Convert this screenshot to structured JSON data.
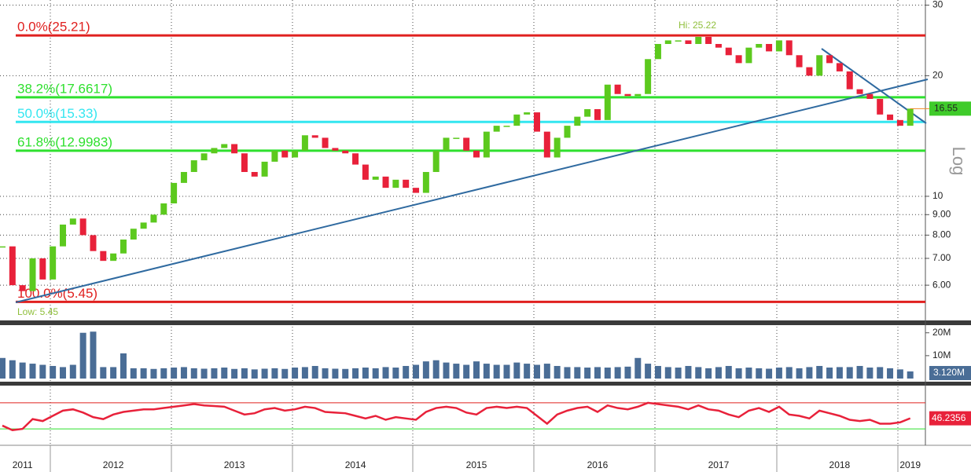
{
  "chart_data": [
    {
      "type": "candle",
      "categories": [
        null,
        null,
        "2011",
        null,
        null,
        null,
        null,
        null,
        null,
        null,
        null,
        "2012",
        null,
        null,
        null,
        null,
        null,
        null,
        null,
        null,
        null,
        null,
        null,
        "2013",
        null,
        null,
        null,
        null,
        null,
        null,
        null,
        null,
        null,
        null,
        null,
        "2014",
        null,
        null,
        null,
        null,
        null,
        null,
        null,
        null,
        null,
        null,
        null,
        "2015",
        null,
        null,
        null,
        null,
        null,
        null,
        null,
        null,
        null,
        null,
        null,
        "2016",
        null,
        null,
        null,
        null,
        null,
        null,
        null,
        null,
        null,
        null,
        null,
        "2017",
        null,
        null,
        null,
        null,
        null,
        null,
        null,
        null,
        null,
        null,
        null,
        "2018",
        null,
        null,
        null,
        null,
        null,
        null,
        "2019"
      ],
      "values": [
        7.5,
        6.0,
        5.8,
        7.0,
        6.2,
        7.5,
        8.5,
        8.8,
        8.0,
        7.3,
        6.9,
        7.2,
        7.8,
        8.3,
        8.6,
        9.0,
        9.6,
        10.8,
        11.5,
        12.3,
        12.8,
        13.2,
        13.5,
        12.8,
        11.5,
        11.2,
        12.2,
        13.0,
        12.5,
        13.0,
        14.2,
        14.0,
        13.2,
        13.0,
        12.8,
        12.0,
        11.0,
        11.2,
        10.5,
        11.0,
        10.5,
        10.2,
        11.5,
        13.0,
        14.0,
        14.0,
        13.0,
        12.5,
        14.5,
        15.0,
        15.0,
        16.0,
        16.2,
        14.5,
        12.5,
        14.0,
        15.0,
        15.8,
        16.5,
        15.5,
        19.0,
        18.0,
        17.8,
        18.0,
        22.0,
        24.0,
        24.5,
        24.5,
        24.0,
        25.0,
        24.0,
        23.5,
        22.5,
        21.5,
        23.5,
        24.0,
        23.0,
        24.5,
        22.5,
        21.0,
        20.0,
        22.5,
        21.5,
        20.5,
        18.5,
        18.0,
        17.5,
        16.0,
        15.5,
        15.0,
        16.55
      ],
      "up_color": "#5cc91e",
      "down_color": "#e8213a",
      "ylim": [
        4.9,
        30.9
      ],
      "log_scale": true,
      "scale_label": "Log",
      "yticks": [
        {
          "value": 6,
          "label": "6.00"
        },
        {
          "value": 7,
          "label": "7.00"
        },
        {
          "value": 8,
          "label": "8.00"
        },
        {
          "value": 9,
          "label": "9.00"
        },
        10,
        20,
        30
      ],
      "grid": true,
      "levels": [
        {
          "value": 25.21,
          "label": "0.0%(25.21)",
          "color": "#e0201f"
        },
        {
          "value": 17.6617,
          "label": "38.2%(17.6617)",
          "color": "#2ee02e"
        },
        {
          "value": 15.33,
          "label": "50.0%(15.33)",
          "color": "#33e6f0"
        },
        {
          "value": 12.9983,
          "label": "61.8%(12.9983)",
          "color": "#2ee02e"
        },
        {
          "value": 5.45,
          "label": "100.0%(5.45)",
          "color": "#e0201f"
        }
      ],
      "annotations": [
        "Hi: 25.22",
        "Low: 5.45"
      ]
    },
    {
      "type": "bar",
      "values": [
        9000000,
        8000000,
        7000000,
        6500000,
        6000000,
        5500000,
        5000000,
        6000000,
        20000000,
        20500000,
        5000000,
        5000000,
        11000000,
        4500000,
        4500000,
        4200000,
        4500000,
        4800000,
        5000000,
        4500000,
        4300000,
        4500000,
        4800000,
        4200000,
        4500000,
        4000000,
        4300000,
        4500000,
        4200000,
        4800000,
        5000000,
        5500000,
        4500000,
        4300000,
        4200000,
        4500000,
        4800000,
        4500000,
        5000000,
        4800000,
        5500000,
        6000000,
        7500000,
        8000000,
        7000000,
        6500000,
        6000000,
        7500000,
        6500000,
        6000000,
        6000000,
        7000000,
        6500000,
        6000000,
        6500000,
        5500000,
        5000000,
        5000000,
        4800000,
        5000000,
        4800000,
        5000000,
        5200000,
        9000000,
        6500000,
        5500000,
        5000000,
        4800000,
        5500000,
        5000000,
        4500000,
        5000000,
        5500000,
        4500000,
        4800000,
        4500000,
        4300000,
        4800000,
        5000000,
        4500000,
        5000000,
        5500000,
        4800000,
        5000000,
        5000000,
        5500000,
        4800000,
        5000000,
        4500000,
        4000000,
        3120000
      ],
      "last_value_label": "3.120M",
      "color": "#4a6d96",
      "ylim": [
        0,
        23000000
      ],
      "yticks": [
        {
          "value": 10000000,
          "label": "10M"
        },
        {
          "value": 20000000,
          "label": "20M"
        }
      ]
    },
    {
      "type": "line",
      "values": [
        35,
        28,
        30,
        45,
        42,
        50,
        58,
        60,
        55,
        48,
        45,
        52,
        56,
        58,
        60,
        60,
        62,
        64,
        66,
        68,
        66,
        65,
        64,
        58,
        52,
        54,
        60,
        62,
        58,
        60,
        64,
        62,
        56,
        55,
        54,
        50,
        46,
        50,
        44,
        48,
        46,
        44,
        56,
        62,
        64,
        62,
        55,
        52,
        62,
        64,
        62,
        64,
        62,
        50,
        38,
        52,
        58,
        62,
        64,
        56,
        66,
        62,
        60,
        64,
        70,
        68,
        66,
        64,
        60,
        66,
        60,
        58,
        52,
        48,
        58,
        62,
        56,
        64,
        52,
        50,
        46,
        58,
        54,
        50,
        44,
        42,
        44,
        38,
        38,
        40,
        46.2356
      ],
      "color": "#e8213a",
      "ylim": [
        0,
        100
      ],
      "levels": [
        {
          "value": 70,
          "color": "#e0201f"
        },
        {
          "value": 30,
          "color": "#2ee02e"
        }
      ]
    }
  ]
}
